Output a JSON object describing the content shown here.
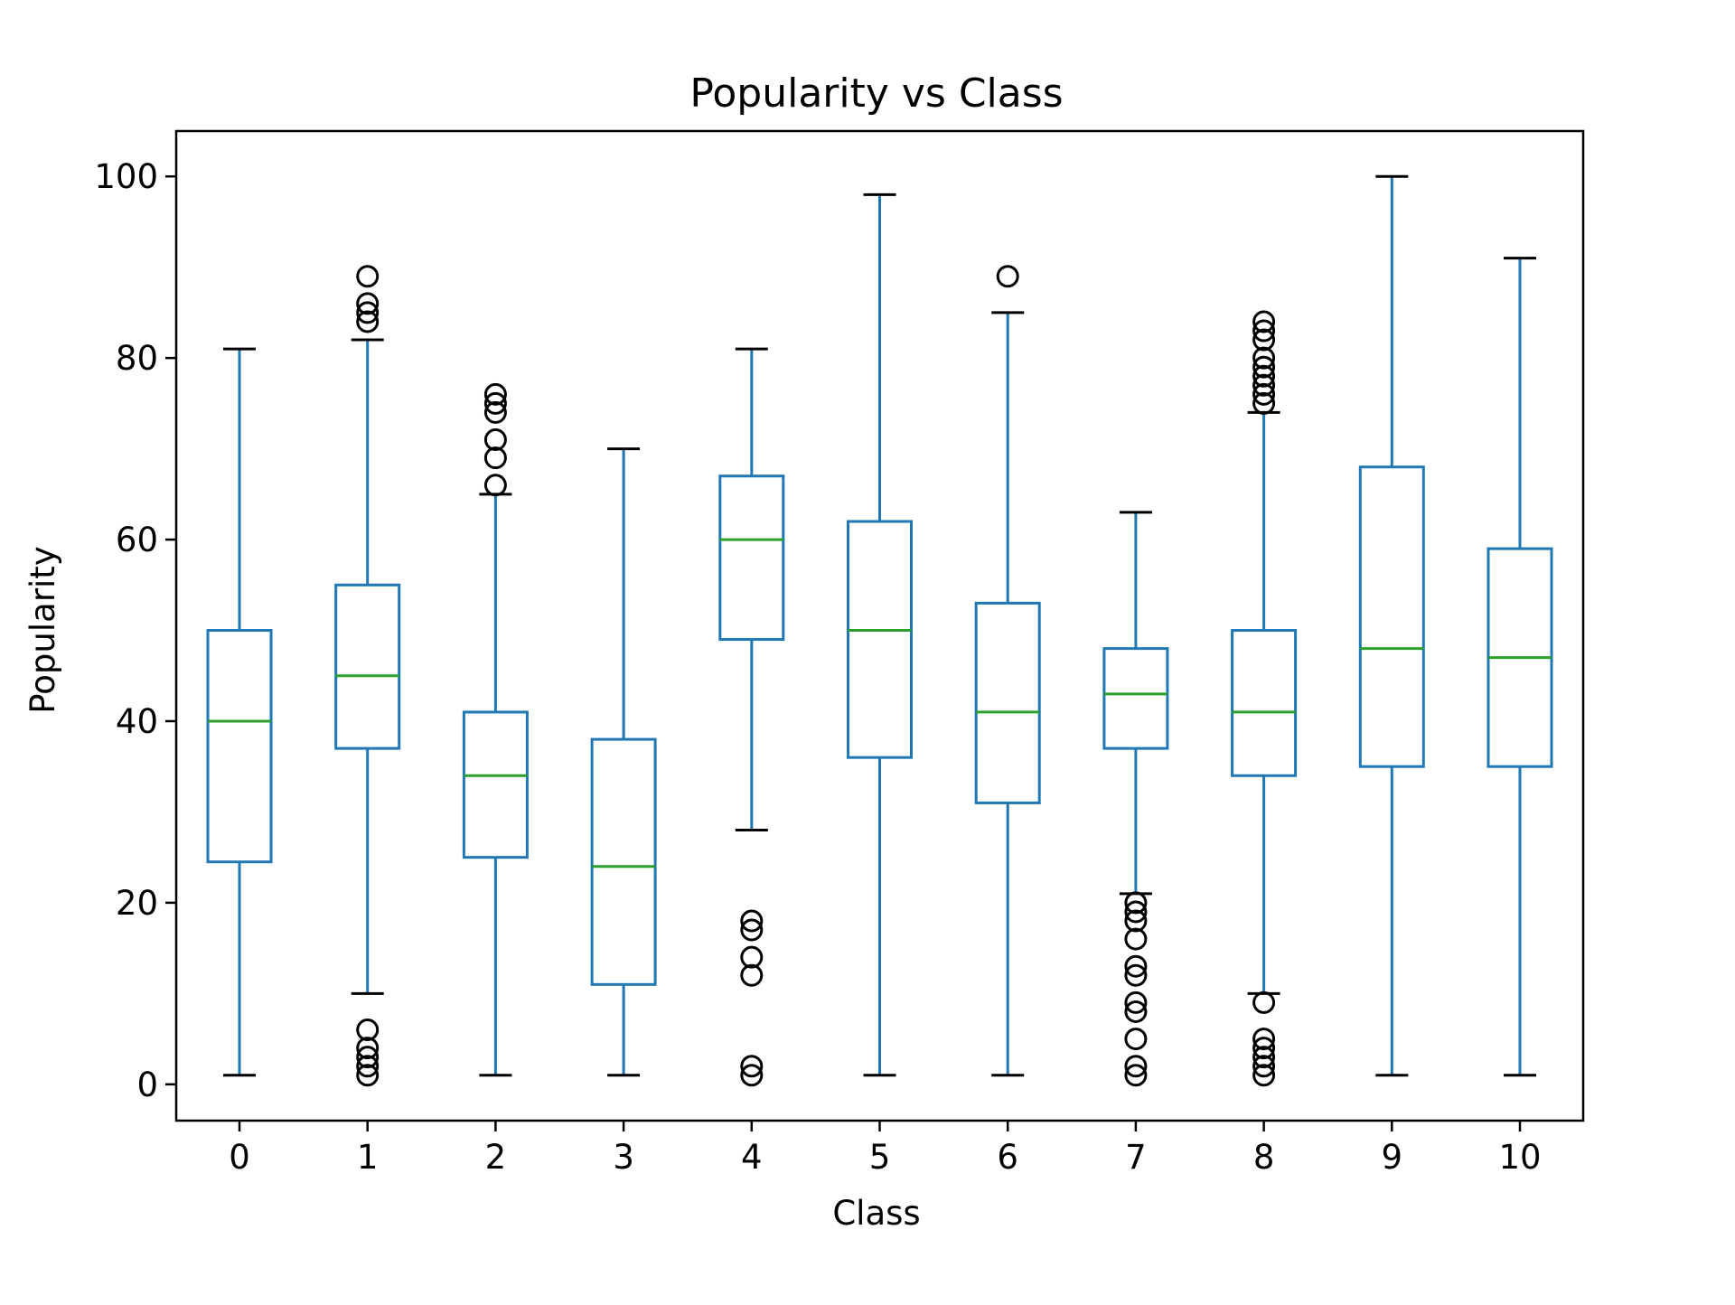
{
  "chart_data": {
    "type": "box",
    "title": "Popularity vs Class",
    "xlabel": "Class",
    "ylabel": "Popularity",
    "ylim": [
      -4,
      105
    ],
    "yticks": [
      0,
      20,
      40,
      60,
      80,
      100
    ],
    "grid": false,
    "colors": {
      "box": "#1f77b4",
      "median": "#2ca02c",
      "whisker": "#1f77b4",
      "cap": "#000000",
      "flier": "#000000"
    },
    "categories": [
      "0",
      "1",
      "2",
      "3",
      "4",
      "5",
      "6",
      "7",
      "8",
      "9",
      "10"
    ],
    "boxes": [
      {
        "category": "0",
        "whisker_low": 1,
        "q1": 24.5,
        "median": 40,
        "q3": 50,
        "whisker_high": 81,
        "fliers": []
      },
      {
        "category": "1",
        "whisker_low": 10,
        "q1": 37,
        "median": 45,
        "q3": 55,
        "whisker_high": 82,
        "fliers": [
          1,
          2,
          3,
          4,
          6,
          84,
          85,
          86,
          89
        ]
      },
      {
        "category": "2",
        "whisker_low": 1,
        "q1": 25,
        "median": 34,
        "q3": 41,
        "whisker_high": 65,
        "fliers": [
          66,
          69,
          71,
          74,
          75,
          76
        ]
      },
      {
        "category": "3",
        "whisker_low": 1,
        "q1": 11,
        "median": 24,
        "q3": 38,
        "whisker_high": 70,
        "fliers": []
      },
      {
        "category": "4",
        "whisker_low": 28,
        "q1": 49,
        "median": 60,
        "q3": 67,
        "whisker_high": 81,
        "fliers": [
          1,
          2,
          12,
          14,
          17,
          18
        ]
      },
      {
        "category": "5",
        "whisker_low": 1,
        "q1": 36,
        "median": 50,
        "q3": 62,
        "whisker_high": 98,
        "fliers": []
      },
      {
        "category": "6",
        "whisker_low": 1,
        "q1": 31,
        "median": 41,
        "q3": 53,
        "whisker_high": 85,
        "fliers": [
          89
        ]
      },
      {
        "category": "7",
        "whisker_low": 21,
        "q1": 37,
        "median": 43,
        "q3": 48,
        "whisker_high": 63,
        "fliers": [
          1,
          2,
          5,
          8,
          9,
          12,
          13,
          16,
          18,
          19,
          20
        ]
      },
      {
        "category": "8",
        "whisker_low": 10,
        "q1": 34,
        "median": 41,
        "q3": 50,
        "whisker_high": 74,
        "fliers": [
          1,
          2,
          3,
          4,
          5,
          9,
          75,
          76,
          77,
          78,
          79,
          80,
          82,
          83,
          84
        ]
      },
      {
        "category": "9",
        "whisker_low": 1,
        "q1": 35,
        "median": 48,
        "q3": 68,
        "whisker_high": 100,
        "fliers": []
      },
      {
        "category": "10",
        "whisker_low": 1,
        "q1": 35,
        "median": 47,
        "q3": 59,
        "whisker_high": 91,
        "fliers": []
      }
    ]
  }
}
